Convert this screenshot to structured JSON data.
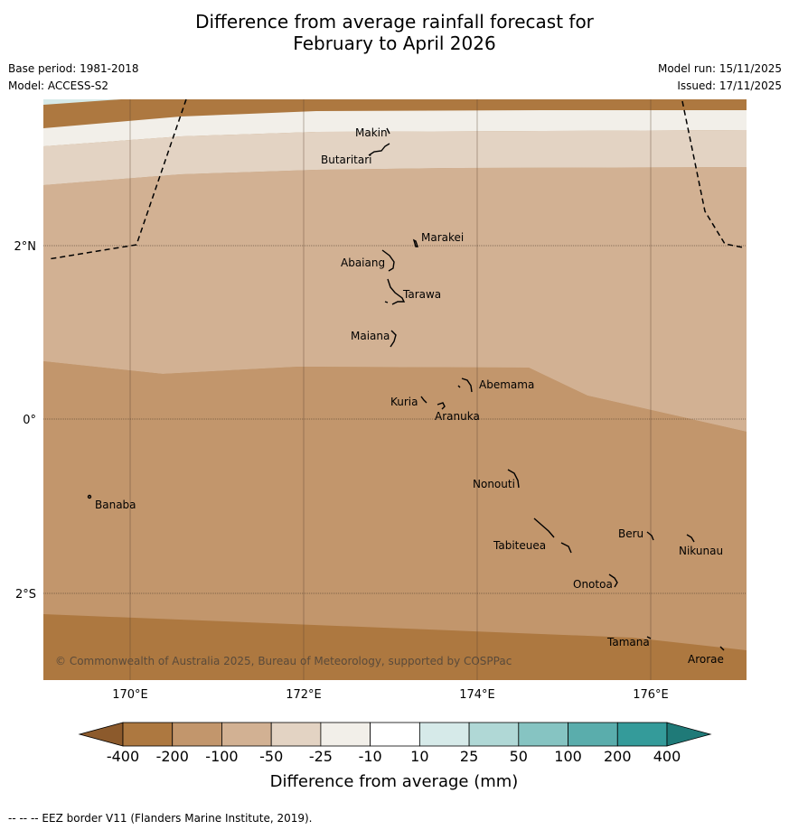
{
  "title_line1": "Difference from average rainfall forecast for",
  "title_line2": "February to April 2026",
  "base_period": "Base period: 1981-2018",
  "model": "Model: ACCESS-S2",
  "model_run": "Model run: 15/11/2025",
  "issued": "Issued: 17/11/2025",
  "lat_labels": [
    "2°N",
    "0°",
    "2°S"
  ],
  "lon_labels": [
    "170°E",
    "172°E",
    "174°E",
    "176°E"
  ],
  "places": [
    "Makin",
    "Butaritari",
    "Marakei",
    "Abaiang",
    "Tarawa",
    "Maiana",
    "Abemama",
    "Kuria",
    "Aranuka",
    "Nonouti",
    "Banaba",
    "Tabiteuea",
    "Beru",
    "Nikunau",
    "Onotoa",
    "Tamana",
    "Arorae"
  ],
  "copyright": "© Commonwealth of Australia 2025, Bureau of Meteorology, supported by COSPPac",
  "colorbar": {
    "ticks": [
      "-400",
      "-200",
      "-100",
      "-50",
      "-25",
      "-10",
      "10",
      "25",
      "50",
      "100",
      "200",
      "400"
    ],
    "colors": [
      "#8c5a2c",
      "#ad7840",
      "#c2966c",
      "#d2b193",
      "#e3d3c3",
      "#f2efe9",
      "#ffffff",
      "#d6eae9",
      "#b0d8d6",
      "#86c4c2",
      "#5aadac",
      "#349b9a",
      "#1f7a78"
    ],
    "title": "Difference from average (mm)"
  },
  "footer": "--  --  -- EEZ border V11 (Flanders Marine Institute, 2019)."
}
